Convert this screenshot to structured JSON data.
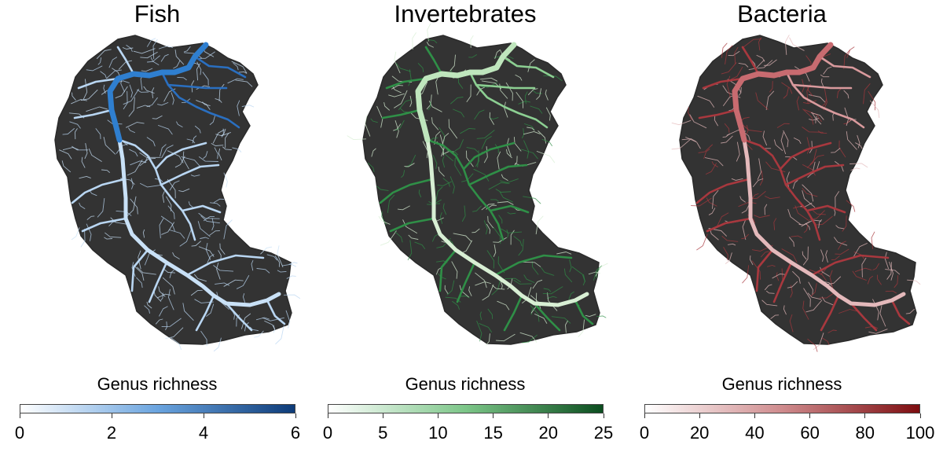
{
  "panels": [
    {
      "title": "Fish",
      "legend_title": "Genus richness",
      "ticks": [
        "0",
        "2",
        "4",
        "6"
      ],
      "min": 0,
      "max": 6,
      "colors": {
        "low": "#ffffff",
        "mid": "#6aa4df",
        "high": "#0d3b78"
      },
      "river_colors": {
        "main_upper": "#2f7fd0",
        "main_lower": "#c9e1f7",
        "trib": "#b9d6f2",
        "east": "#2a6fc0"
      }
    },
    {
      "title": "Invertebrates",
      "legend_title": "Genus richness",
      "ticks": [
        "0",
        "5",
        "10",
        "15",
        "20",
        "25"
      ],
      "min": 0,
      "max": 25,
      "colors": {
        "low": "#ffffff",
        "mid": "#7cc688",
        "high": "#0b4d1f"
      },
      "river_colors": {
        "main_upper": "#bfe6bd",
        "main_lower": "#d8efd4",
        "trib": "#2f8f47",
        "east": "#8ccf92"
      }
    },
    {
      "title": "Bacteria",
      "legend_title": "Genus richness",
      "ticks": [
        "0",
        "20",
        "40",
        "60",
        "80",
        "100"
      ],
      "min": 0,
      "max": 100,
      "colors": {
        "low": "#ffffff",
        "mid": "#cf8b8d",
        "high": "#7d0d10"
      },
      "river_colors": {
        "main_upper": "#c86b70",
        "main_lower": "#e4b9bb",
        "trib": "#a8383e",
        "east": "#d99a9d"
      }
    }
  ]
}
